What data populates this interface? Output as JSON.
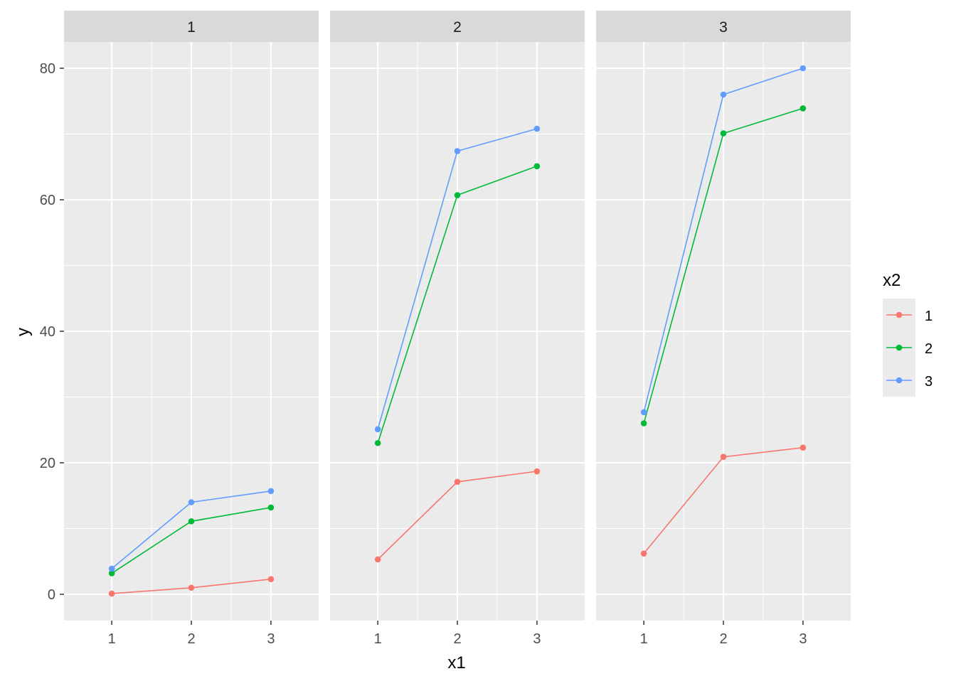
{
  "chart_data": {
    "type": "line",
    "facet_label": "",
    "facets": [
      {
        "strip": "1",
        "series": [
          {
            "name": "1",
            "x": [
              1,
              2,
              3
            ],
            "y": [
              0.1,
              1.0,
              2.3
            ]
          },
          {
            "name": "2",
            "x": [
              1,
              2,
              3
            ],
            "y": [
              3.2,
              11.1,
              13.2
            ]
          },
          {
            "name": "3",
            "x": [
              1,
              2,
              3
            ],
            "y": [
              3.9,
              14.0,
              15.7
            ]
          }
        ]
      },
      {
        "strip": "2",
        "series": [
          {
            "name": "1",
            "x": [
              1,
              2,
              3
            ],
            "y": [
              5.3,
              17.1,
              18.7
            ]
          },
          {
            "name": "2",
            "x": [
              1,
              2,
              3
            ],
            "y": [
              23.0,
              60.7,
              65.1
            ]
          },
          {
            "name": "3",
            "x": [
              1,
              2,
              3
            ],
            "y": [
              25.1,
              67.4,
              70.8
            ]
          }
        ]
      },
      {
        "strip": "3",
        "series": [
          {
            "name": "1",
            "x": [
              1,
              2,
              3
            ],
            "y": [
              6.2,
              20.9,
              22.3
            ]
          },
          {
            "name": "2",
            "x": [
              1,
              2,
              3
            ],
            "y": [
              26.0,
              70.1,
              73.9
            ]
          },
          {
            "name": "3",
            "x": [
              1,
              2,
              3
            ],
            "y": [
              27.7,
              76.0,
              80.0
            ]
          }
        ]
      }
    ],
    "xlabel": "x1",
    "ylabel": "y",
    "x_ticks": [
      "1",
      "2",
      "3"
    ],
    "x_tick_values": [
      1,
      2,
      3
    ],
    "y_ticks": [
      "0",
      "20",
      "40",
      "60",
      "80"
    ],
    "y_tick_values": [
      0,
      20,
      40,
      60,
      80
    ],
    "xlim": [
      0.4,
      3.6
    ],
    "ylim": [
      -4,
      84
    ],
    "legend": {
      "title": "x2",
      "placement": "right",
      "entries": [
        "1",
        "2",
        "3"
      ]
    },
    "colors": {
      "1": "#F8766D",
      "2": "#00BA38",
      "3": "#619CFF",
      "panel_background": "#EBEBEB",
      "strip_background": "#D9D9D9",
      "grid": "#FFFFFF",
      "text": "#4D4D4D",
      "title_text": "#000000"
    },
    "grid": true
  }
}
